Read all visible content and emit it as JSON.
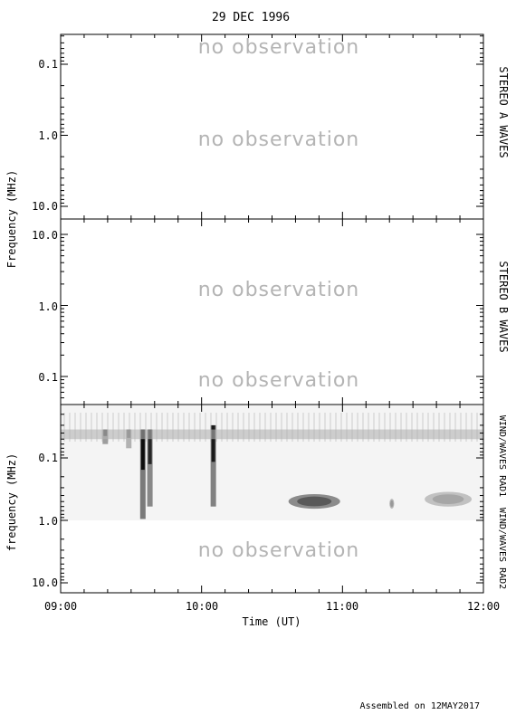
{
  "title": "29 DEC 1996",
  "footer": "Assembled on 12MAY2017",
  "no_observation_text": "no observation",
  "colors": {
    "axes": "#000000",
    "no_observation": "#b4b4b4",
    "spectrogram_dark": "#000000"
  },
  "chart_data": [
    {
      "type": "heatmap",
      "panel": "stereo-a",
      "right_label": "STEREO A WAVES",
      "ylabel": "Frequency (MHz)",
      "yscale": "log",
      "ylim": [
        12.5,
        0.042
      ],
      "yticks": [
        "0.1",
        "1.0",
        "10.0"
      ],
      "annotations": [
        "no observation",
        "no observation"
      ]
    },
    {
      "type": "heatmap",
      "panel": "stereo-b",
      "right_label": "STEREO B WAVES",
      "ylabel": "",
      "yscale": "log",
      "ylim": [
        0.042,
        12.5
      ],
      "yticks": [
        "10.0",
        "1.0",
        "0.1"
      ],
      "annotations": [
        "no observation",
        "no observation"
      ]
    },
    {
      "type": "heatmap",
      "panel": "wind",
      "right_label_upper": "WIND/WAVES RAD1",
      "right_label_lower": "WIND/WAVES RAD2",
      "ylabel": "frequency (MHz)",
      "xlabel": "Time (UT)",
      "yscale": "log",
      "ylim": [
        12.5,
        0.02
      ],
      "yticks": [
        "0.1",
        "1.0",
        "10.0"
      ],
      "xlim": [
        "09:00",
        "12:00"
      ],
      "xticks": [
        "09:00",
        "10:00",
        "11:00",
        "12:00"
      ],
      "annotations": [
        "no observation"
      ],
      "rad1_range_mhz": [
        0.02,
        1.0
      ],
      "rad2_status": "no observation",
      "features": [
        {
          "kind": "type III burst",
          "time": "09:35",
          "freq_range_mhz": [
            0.035,
            0.95
          ],
          "intensity": 0.95
        },
        {
          "kind": "type III burst",
          "time": "09:38",
          "freq_range_mhz": [
            0.035,
            0.6
          ],
          "intensity": 0.85
        },
        {
          "kind": "type III burst",
          "time": "10:05",
          "freq_range_mhz": [
            0.03,
            0.6
          ],
          "intensity": 0.9
        },
        {
          "kind": "type III burst",
          "time": "09:19",
          "freq_range_mhz": [
            0.035,
            0.06
          ],
          "intensity": 0.7
        },
        {
          "kind": "type III burst",
          "time": "09:29",
          "freq_range_mhz": [
            0.035,
            0.07
          ],
          "intensity": 0.55
        },
        {
          "kind": "emission patch",
          "time_range": [
            "10:37",
            "10:59"
          ],
          "freq_range_mhz": [
            0.38,
            0.65
          ],
          "intensity": 0.65
        },
        {
          "kind": "emission patch",
          "time_range": [
            "11:20",
            "11:22"
          ],
          "freq_range_mhz": [
            0.45,
            0.65
          ],
          "intensity": 0.4
        },
        {
          "kind": "emission patch",
          "time_range": [
            "11:35",
            "11:55"
          ],
          "freq_range_mhz": [
            0.35,
            0.6
          ],
          "intensity": 0.35
        },
        {
          "kind": "background band",
          "time_range": [
            "09:00",
            "12:00"
          ],
          "freq_range_mhz": [
            0.035,
            0.05
          ],
          "intensity": 0.3
        }
      ]
    }
  ]
}
